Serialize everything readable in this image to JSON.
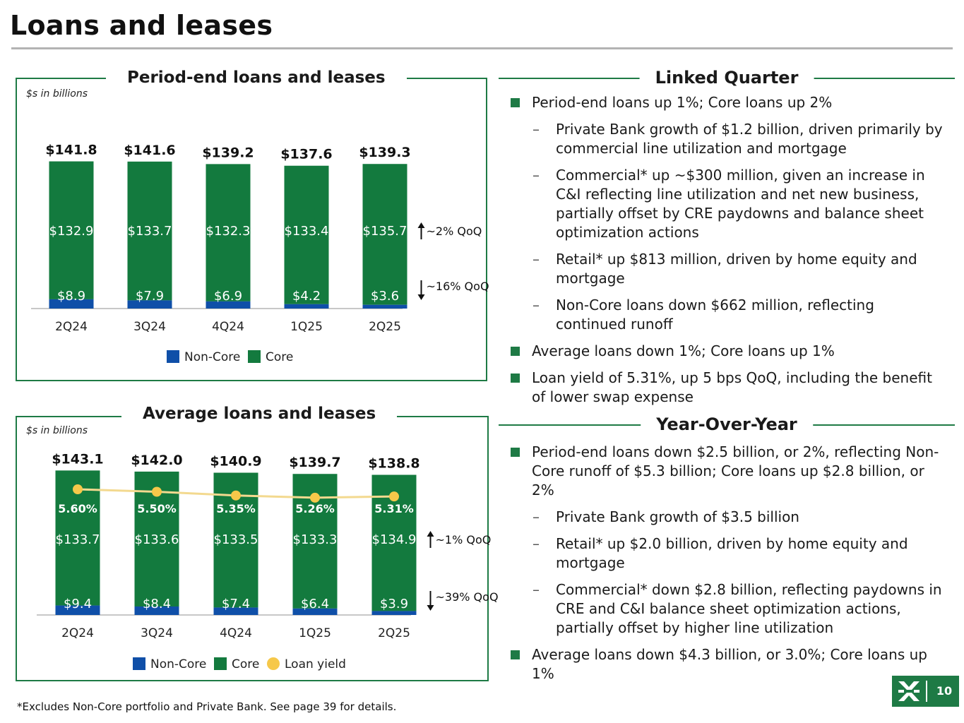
{
  "page": {
    "title": "Loans and leases",
    "footnote": "*Excludes Non-Core portfolio and Private Bank. See page 39 for details.",
    "page_number": "10",
    "logo_icon": "bank-logo-icon"
  },
  "colors": {
    "core": "#137a3e",
    "non_core": "#0f4fa8",
    "loan_yield": "#f6c84a",
    "loan_yield_line": "#f3d98f",
    "accent": "#1e7a45"
  },
  "chart_data": [
    {
      "type": "bar",
      "stacked": true,
      "title": "Period-end loans and leases",
      "units": "$s in billions",
      "categories": [
        "2Q24",
        "3Q24",
        "4Q24",
        "1Q25",
        "2Q25"
      ],
      "series": [
        {
          "name": "Non-Core",
          "values": [
            8.9,
            7.9,
            6.9,
            4.2,
            3.6
          ],
          "labels": [
            "$8.9",
            "$7.9",
            "$6.9",
            "$4.2",
            "$3.6"
          ]
        },
        {
          "name": "Core",
          "values": [
            132.9,
            133.7,
            132.3,
            133.4,
            135.7
          ],
          "labels": [
            "$132.9",
            "$133.7",
            "$132.3",
            "$133.4",
            "$135.7"
          ]
        }
      ],
      "totals": [
        141.8,
        141.6,
        139.2,
        137.6,
        139.3
      ],
      "total_labels": [
        "$141.8",
        "$141.6",
        "$139.2",
        "$137.6",
        "$139.3"
      ],
      "annotations": [
        {
          "series": "Core",
          "direction": "up",
          "text": "~2% QoQ"
        },
        {
          "series": "Non-Core",
          "direction": "down",
          "text": "~16% QoQ"
        }
      ],
      "legend": [
        "Non-Core",
        "Core"
      ],
      "legend_position": "bottom"
    },
    {
      "type": "bar",
      "stacked": true,
      "title": "Average loans and leases",
      "units": "$s in billions",
      "categories": [
        "2Q24",
        "3Q24",
        "4Q24",
        "1Q25",
        "2Q25"
      ],
      "series": [
        {
          "name": "Non-Core",
          "values": [
            9.4,
            8.4,
            7.4,
            6.4,
            3.9
          ],
          "labels": [
            "$9.4",
            "$8.4",
            "$7.4",
            "$6.4",
            "$3.9"
          ]
        },
        {
          "name": "Core",
          "values": [
            133.7,
            133.6,
            133.5,
            133.3,
            134.9
          ],
          "labels": [
            "$133.7",
            "$133.6",
            "$133.5",
            "$133.3",
            "$134.9"
          ]
        },
        {
          "name": "Loan yield",
          "type": "line",
          "values": [
            5.6,
            5.5,
            5.35,
            5.26,
            5.31
          ],
          "labels": [
            "5.60%",
            "5.50%",
            "5.35%",
            "5.26%",
            "5.31%"
          ]
        }
      ],
      "totals": [
        143.1,
        142.0,
        140.9,
        139.7,
        138.8
      ],
      "total_labels": [
        "$143.1",
        "$142.0",
        "$140.9",
        "$139.7",
        "$138.8"
      ],
      "annotations": [
        {
          "series": "Core",
          "direction": "up",
          "text": "~1% QoQ"
        },
        {
          "series": "Non-Core",
          "direction": "down",
          "text": "~39% QoQ"
        }
      ],
      "legend": [
        "Non-Core",
        "Core",
        "Loan yield"
      ],
      "legend_position": "bottom"
    }
  ],
  "linked_quarter": {
    "title": "Linked Quarter",
    "bullets": [
      {
        "level": 1,
        "text": "Period-end loans up 1%; Core loans up 2%"
      },
      {
        "level": 2,
        "text": "Private Bank growth of $1.2 billion, driven primarily by commercial line utilization and mortgage"
      },
      {
        "level": 2,
        "text": "Commercial* up ~$300 million, given an increase in C&I reflecting line utilization and net new business, partially offset by CRE paydowns and balance sheet optimization actions"
      },
      {
        "level": 2,
        "text": "Retail* up $813 million, driven by home equity and mortgage"
      },
      {
        "level": 2,
        "text": "Non-Core loans down $662 million, reflecting continued runoff"
      },
      {
        "level": 1,
        "text": "Average loans down 1%; Core loans up 1%"
      },
      {
        "level": 1,
        "text": "Loan yield of 5.31%, up 5 bps QoQ, including the benefit of lower swap expense"
      }
    ]
  },
  "year_over_year": {
    "title": "Year-Over-Year",
    "bullets": [
      {
        "level": 1,
        "text": "Period-end loans down $2.5 billion, or 2%, reflecting Non-Core runoff of $5.3 billion; Core loans up $2.8 billion, or 2%"
      },
      {
        "level": 2,
        "text": "Private Bank growth of $3.5 billion"
      },
      {
        "level": 2,
        "text": "Retail* up $2.0 billion, driven by home equity and mortgage"
      },
      {
        "level": 2,
        "text": "Commercial* down $2.8 billion, reflecting paydowns in CRE and C&I balance sheet optimization actions, partially offset by higher line utilization"
      },
      {
        "level": 1,
        "text": "Average loans down $4.3 billion, or 3.0%; Core loans up 1%"
      }
    ]
  }
}
